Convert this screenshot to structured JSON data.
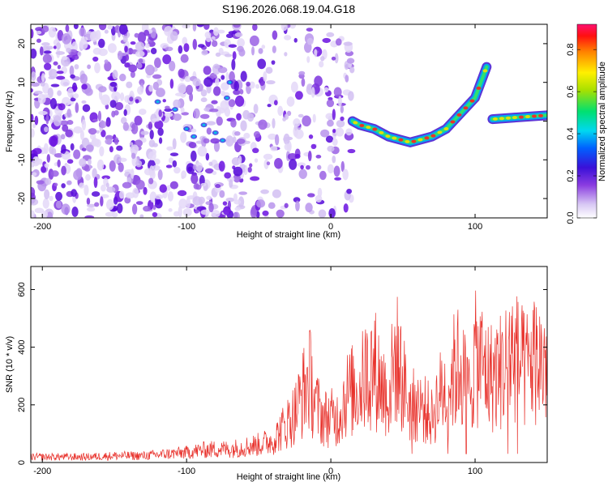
{
  "title": "S196.2026.068.19.04.G18",
  "chart_data": [
    {
      "type": "heatmap",
      "title": "S196.2026.068.19.04.G18",
      "xlabel": "Height of straight line (km)",
      "ylabel": "Frequency (Hz)",
      "xlim": [
        -208,
        150
      ],
      "ylim": [
        -25,
        25
      ],
      "xticks": [
        -200,
        -100,
        0,
        100
      ],
      "yticks": [
        -20,
        -10,
        0,
        10,
        20
      ],
      "colorbar": {
        "label": "Normalized spectral amplitude",
        "range": [
          0,
          0.92
        ],
        "ticks": [
          0.0,
          0.2,
          0.4,
          0.6,
          0.8
        ]
      },
      "ridge": [
        {
          "x": 15,
          "y": 0
        },
        {
          "x": 20,
          "y": -1
        },
        {
          "x": 30,
          "y": -2
        },
        {
          "x": 40,
          "y": -4
        },
        {
          "x": 50,
          "y": -5
        },
        {
          "x": 55,
          "y": -5.5
        },
        {
          "x": 60,
          "y": -5
        },
        {
          "x": 70,
          "y": -4
        },
        {
          "x": 80,
          "y": -2
        },
        {
          "x": 90,
          "y": 2
        },
        {
          "x": 100,
          "y": 6
        },
        {
          "x": 108,
          "y": 14
        }
      ],
      "ridge2": [
        {
          "x": 112,
          "y": 0.5
        },
        {
          "x": 150,
          "y": 1.5
        }
      ]
    },
    {
      "type": "line",
      "xlabel": "Height of straight line (km)",
      "ylabel": "SNR (10 * v/v)",
      "xlim": [
        -208,
        150
      ],
      "ylim": [
        0,
        680
      ],
      "xticks": [
        -200,
        -100,
        0,
        100
      ],
      "yticks": [
        0,
        200,
        400,
        600
      ],
      "series": [
        {
          "name": "SNR",
          "color": "#e8312b",
          "x": [
            -208,
            -190,
            -170,
            -150,
            -130,
            -110,
            -100,
            -90,
            -80,
            -70,
            -60,
            -50,
            -40,
            -30,
            -25,
            -20,
            -15,
            -10,
            -5,
            0,
            5,
            10,
            15,
            20,
            25,
            30,
            35,
            40,
            45,
            50,
            55,
            60,
            65,
            70,
            75,
            80,
            85,
            90,
            95,
            100,
            105,
            110,
            115,
            120,
            125,
            130,
            135,
            140,
            145,
            150
          ],
          "values": [
            25,
            25,
            25,
            30,
            30,
            40,
            45,
            55,
            60,
            60,
            70,
            80,
            100,
            180,
            220,
            300,
            380,
            250,
            200,
            200,
            200,
            300,
            320,
            330,
            400,
            430,
            350,
            300,
            480,
            360,
            250,
            260,
            240,
            200,
            300,
            330,
            400,
            440,
            300,
            460,
            440,
            380,
            400,
            420,
            500,
            450,
            400,
            470,
            450,
            450
          ]
        }
      ]
    }
  ]
}
